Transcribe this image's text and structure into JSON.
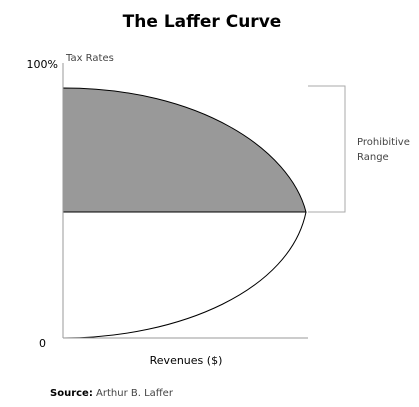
{
  "title": "The Laffer Curve",
  "y_axis": {
    "label": "Tax Rates",
    "top_label": "100%",
    "bottom_label": "0"
  },
  "x_axis": {
    "label": "Revenues ($)"
  },
  "annotation": {
    "line1": "Prohibitive",
    "line2": "Range"
  },
  "source": {
    "prefix": "Source:",
    "text": "Arthur B. Laffer"
  }
}
